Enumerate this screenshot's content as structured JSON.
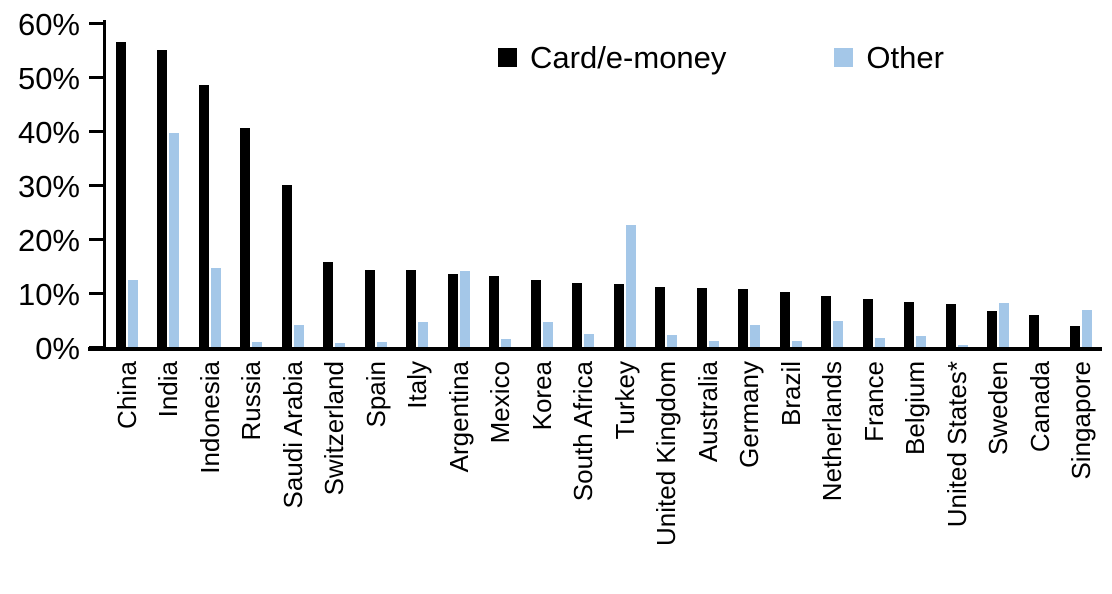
{
  "chart_data": {
    "type": "bar",
    "title": "",
    "categories": [
      "China",
      "India",
      "Indonesia",
      "Russia",
      "Saudi Arabia",
      "Switzerland",
      "Spain",
      "Italy",
      "Argentina",
      "Mexico",
      "Korea",
      "South Africa",
      "Turkey",
      "United Kingdom",
      "Australia",
      "Germany",
      "Brazil",
      "Netherlands",
      "France",
      "Belgium",
      "United States*",
      "Sweden",
      "Canada",
      "Singapore"
    ],
    "series": [
      {
        "name": "Card/e-money",
        "color": "#000000",
        "values": [
          56.5,
          55,
          48.5,
          40.5,
          30,
          15.7,
          14.3,
          14.2,
          13.6,
          13.1,
          12.4,
          11.8,
          11.7,
          11.2,
          10.9,
          10.7,
          10.1,
          9.4,
          8.8,
          8.3,
          8.0,
          6.7,
          6.0,
          3.9
        ]
      },
      {
        "name": "Other",
        "color": "#A4C7E8",
        "values": [
          12.4,
          39.7,
          14.6,
          1.0,
          4.0,
          0.8,
          1.0,
          4.7,
          14.0,
          1.5,
          4.7,
          2.4,
          22.6,
          2.3,
          1.1,
          4.1,
          1.2,
          4.9,
          1.6,
          2.1,
          0.3,
          8.2,
          0,
          6.8
        ]
      }
    ],
    "xlabel": "",
    "ylabel": "",
    "ylim": [
      0,
      60
    ],
    "ytick_step": 10,
    "ytick_labels": [
      "0%",
      "10%",
      "20%",
      "30%",
      "40%",
      "50%",
      "60%"
    ],
    "grid": false,
    "legend_position": "top-center",
    "axis_color": "#000000",
    "background_color": "#ffffff"
  }
}
